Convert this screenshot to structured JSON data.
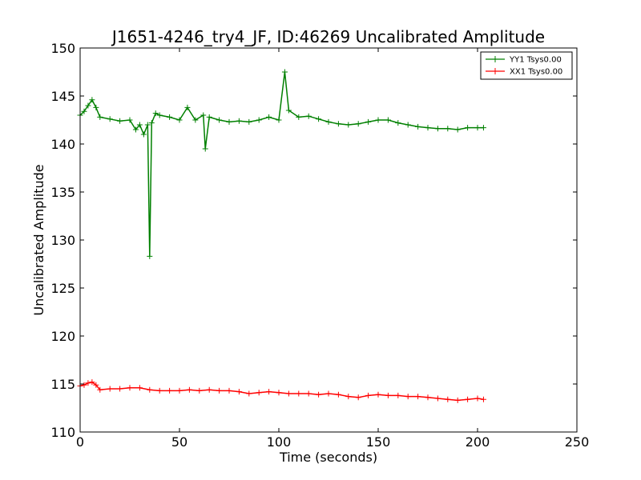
{
  "chart_data": {
    "type": "line",
    "title": "J1651-4246_try4_JF, ID:46269 Uncalibrated Amplitude",
    "xlabel": "Time (seconds)",
    "ylabel": "Uncalibrated Amplitude",
    "xlim": [
      0,
      250
    ],
    "ylim": [
      110,
      150
    ],
    "xticks": [
      0,
      50,
      100,
      150,
      200,
      250
    ],
    "yticks": [
      110,
      115,
      120,
      125,
      130,
      135,
      140,
      145,
      150
    ],
    "grid": false,
    "legend_position": "top-right",
    "marker": "plus",
    "series": [
      {
        "name": "YY1 Tsys0.00",
        "color": "#008000",
        "x": [
          0,
          2,
          4,
          6,
          8,
          10,
          15,
          20,
          25,
          28,
          30,
          32,
          34,
          35,
          36,
          38,
          40,
          45,
          50,
          54,
          58,
          62,
          63,
          65,
          70,
          75,
          80,
          85,
          90,
          95,
          100,
          103,
          105,
          110,
          115,
          120,
          125,
          130,
          135,
          140,
          145,
          150,
          155,
          160,
          165,
          170,
          175,
          180,
          185,
          190,
          195,
          200,
          203
        ],
        "y": [
          143.0,
          143.4,
          144.0,
          144.6,
          143.8,
          142.8,
          142.6,
          142.4,
          142.5,
          141.5,
          142.0,
          141.0,
          142.0,
          128.3,
          142.2,
          143.2,
          143.0,
          142.8,
          142.5,
          143.8,
          142.5,
          143.0,
          139.5,
          142.8,
          142.5,
          142.3,
          142.4,
          142.3,
          142.5,
          142.8,
          142.5,
          147.5,
          143.5,
          142.8,
          142.9,
          142.6,
          142.3,
          142.1,
          142.0,
          142.1,
          142.3,
          142.5,
          142.5,
          142.2,
          142.0,
          141.8,
          141.7,
          141.6,
          141.6,
          141.5,
          141.7,
          141.7,
          141.7
        ]
      },
      {
        "name": "XX1 Tsys0.00",
        "color": "#ff0000",
        "x": [
          0,
          2,
          4,
          6,
          8,
          10,
          15,
          20,
          25,
          30,
          35,
          40,
          45,
          50,
          55,
          60,
          65,
          70,
          75,
          80,
          85,
          90,
          95,
          100,
          105,
          110,
          115,
          120,
          125,
          130,
          135,
          140,
          145,
          150,
          155,
          160,
          165,
          170,
          175,
          180,
          185,
          190,
          195,
          200,
          203
        ],
        "y": [
          114.8,
          114.9,
          115.1,
          115.2,
          114.9,
          114.4,
          114.5,
          114.5,
          114.6,
          114.6,
          114.4,
          114.3,
          114.3,
          114.3,
          114.4,
          114.3,
          114.4,
          114.3,
          114.3,
          114.2,
          114.0,
          114.1,
          114.2,
          114.1,
          114.0,
          114.0,
          114.0,
          113.9,
          114.0,
          113.9,
          113.7,
          113.6,
          113.8,
          113.9,
          113.8,
          113.8,
          113.7,
          113.7,
          113.6,
          113.5,
          113.4,
          113.3,
          113.4,
          113.5,
          113.4
        ]
      }
    ]
  }
}
